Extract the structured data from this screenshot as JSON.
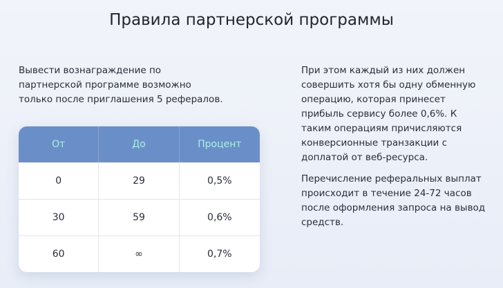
{
  "header": {
    "title": "Правила партнерской программы"
  },
  "left_text": "Вывести вознаграждение по партнерской программе возможно только после приглашения 5 рефералов.",
  "table": {
    "headers": [
      "От",
      "До",
      "Процент"
    ],
    "rows": [
      [
        "0",
        "29",
        "0,5%"
      ],
      [
        "30",
        "59",
        "0,6%"
      ],
      [
        "60",
        "∞",
        "0,7%"
      ]
    ]
  },
  "right_text": [
    "При этом каждый из них должен совершить хотя бы одну обменную операцию, которая принесет прибыль сервису более 0,6%. К таким операциям причисляются конверсионные транзакции с доплатой от веб-ресурса.",
    "Перечисление реферальных выплат происходит в течение 24-72 часов после оформления запроса на вывод средств."
  ]
}
